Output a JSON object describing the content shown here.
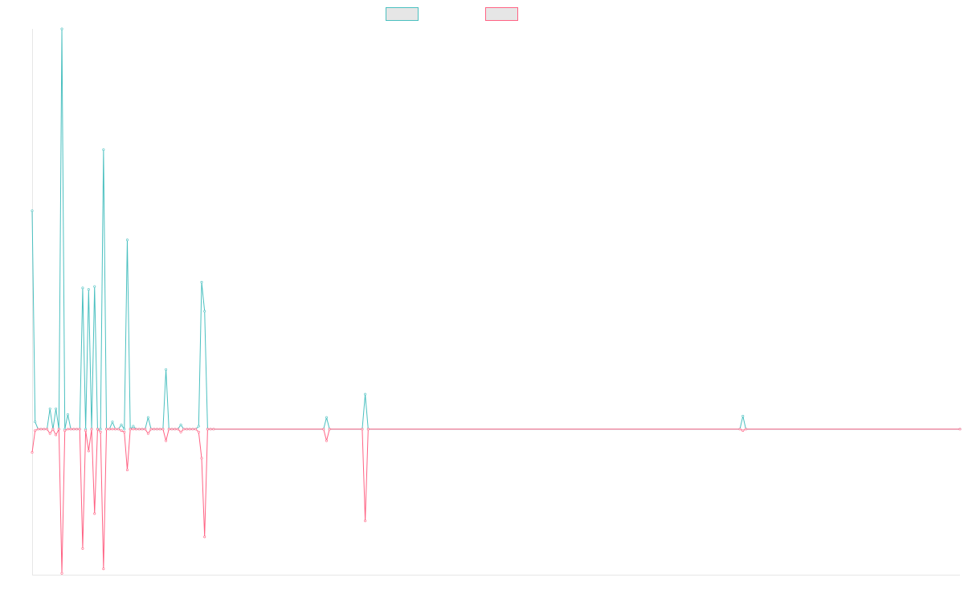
{
  "chart_data": {
    "type": "line",
    "title": "",
    "xlabel": "",
    "ylabel": "",
    "x_count": 313,
    "xlim": [
      0,
      312
    ],
    "ylim": [
      -100,
      275
    ],
    "grid": false,
    "legend_position": "top-center",
    "series": [
      {
        "legend_label": "",
        "color": "#4bc0c0",
        "fill": "#e6e6e6",
        "points": [
          [
            0,
            150
          ],
          [
            1,
            5
          ],
          [
            2,
            0
          ],
          [
            3,
            0
          ],
          [
            4,
            0
          ],
          [
            5,
            0
          ],
          [
            6,
            14
          ],
          [
            7,
            0
          ],
          [
            8,
            14
          ],
          [
            9,
            0
          ],
          [
            10,
            275
          ],
          [
            11,
            0
          ],
          [
            12,
            10
          ],
          [
            13,
            0
          ],
          [
            14,
            0
          ],
          [
            15,
            0
          ],
          [
            16,
            0
          ],
          [
            17,
            97
          ],
          [
            18,
            0
          ],
          [
            19,
            96
          ],
          [
            20,
            0
          ],
          [
            21,
            98
          ],
          [
            22,
            0
          ],
          [
            23,
            0
          ],
          [
            24,
            192
          ],
          [
            25,
            0
          ],
          [
            26,
            0
          ],
          [
            27,
            5
          ],
          [
            28,
            0
          ],
          [
            29,
            0
          ],
          [
            30,
            3
          ],
          [
            31,
            0
          ],
          [
            32,
            130
          ],
          [
            33,
            0
          ],
          [
            34,
            2
          ],
          [
            35,
            0
          ],
          [
            36,
            0
          ],
          [
            37,
            0
          ],
          [
            38,
            0
          ],
          [
            39,
            8
          ],
          [
            40,
            0
          ],
          [
            41,
            0
          ],
          [
            42,
            0
          ],
          [
            43,
            0
          ],
          [
            44,
            0
          ],
          [
            45,
            41
          ],
          [
            46,
            0
          ],
          [
            47,
            0
          ],
          [
            48,
            0
          ],
          [
            49,
            0
          ],
          [
            50,
            3
          ],
          [
            51,
            0
          ],
          [
            52,
            0
          ],
          [
            53,
            0
          ],
          [
            54,
            0
          ],
          [
            55,
            0
          ],
          [
            56,
            2
          ],
          [
            57,
            101
          ],
          [
            58,
            81
          ],
          [
            59,
            0
          ],
          [
            60,
            0
          ],
          [
            61,
            0
          ],
          [
            98,
            0
          ],
          [
            99,
            8
          ],
          [
            100,
            0
          ],
          [
            111,
            0
          ],
          [
            112,
            24
          ],
          [
            113,
            0
          ],
          [
            238,
            0
          ],
          [
            239,
            9
          ],
          [
            240,
            0
          ],
          [
            312,
            0
          ]
        ]
      },
      {
        "legend_label": "",
        "color": "#ff6384",
        "fill": "#e6e6e6",
        "points": [
          [
            0,
            -16
          ],
          [
            1,
            -1
          ],
          [
            2,
            0
          ],
          [
            3,
            0
          ],
          [
            4,
            0
          ],
          [
            5,
            0
          ],
          [
            6,
            -3
          ],
          [
            7,
            0
          ],
          [
            8,
            -4
          ],
          [
            9,
            0
          ],
          [
            10,
            -99
          ],
          [
            11,
            -1
          ],
          [
            12,
            0
          ],
          [
            13,
            0
          ],
          [
            14,
            0
          ],
          [
            15,
            0
          ],
          [
            16,
            0
          ],
          [
            17,
            -82
          ],
          [
            18,
            -1
          ],
          [
            19,
            -15
          ],
          [
            20,
            0
          ],
          [
            21,
            -58
          ],
          [
            22,
            0
          ],
          [
            23,
            -2
          ],
          [
            24,
            -96
          ],
          [
            25,
            0
          ],
          [
            26,
            0
          ],
          [
            27,
            0
          ],
          [
            28,
            0
          ],
          [
            29,
            0
          ],
          [
            30,
            -1
          ],
          [
            31,
            -2
          ],
          [
            32,
            -28
          ],
          [
            33,
            0
          ],
          [
            34,
            0
          ],
          [
            35,
            0
          ],
          [
            36,
            0
          ],
          [
            37,
            0
          ],
          [
            38,
            0
          ],
          [
            39,
            -3
          ],
          [
            40,
            0
          ],
          [
            41,
            0
          ],
          [
            42,
            0
          ],
          [
            43,
            0
          ],
          [
            44,
            0
          ],
          [
            45,
            -8
          ],
          [
            46,
            0
          ],
          [
            47,
            0
          ],
          [
            48,
            0
          ],
          [
            49,
            0
          ],
          [
            50,
            -2
          ],
          [
            51,
            0
          ],
          [
            52,
            0
          ],
          [
            53,
            0
          ],
          [
            54,
            0
          ],
          [
            55,
            0
          ],
          [
            56,
            -2
          ],
          [
            57,
            -20
          ],
          [
            58,
            -74
          ],
          [
            59,
            0
          ],
          [
            60,
            0
          ],
          [
            61,
            0
          ],
          [
            98,
            0
          ],
          [
            99,
            -8
          ],
          [
            100,
            0
          ],
          [
            111,
            0
          ],
          [
            112,
            -63
          ],
          [
            113,
            0
          ],
          [
            238,
            0
          ],
          [
            239,
            -1
          ],
          [
            240,
            0
          ],
          [
            312,
            0
          ]
        ]
      }
    ]
  }
}
